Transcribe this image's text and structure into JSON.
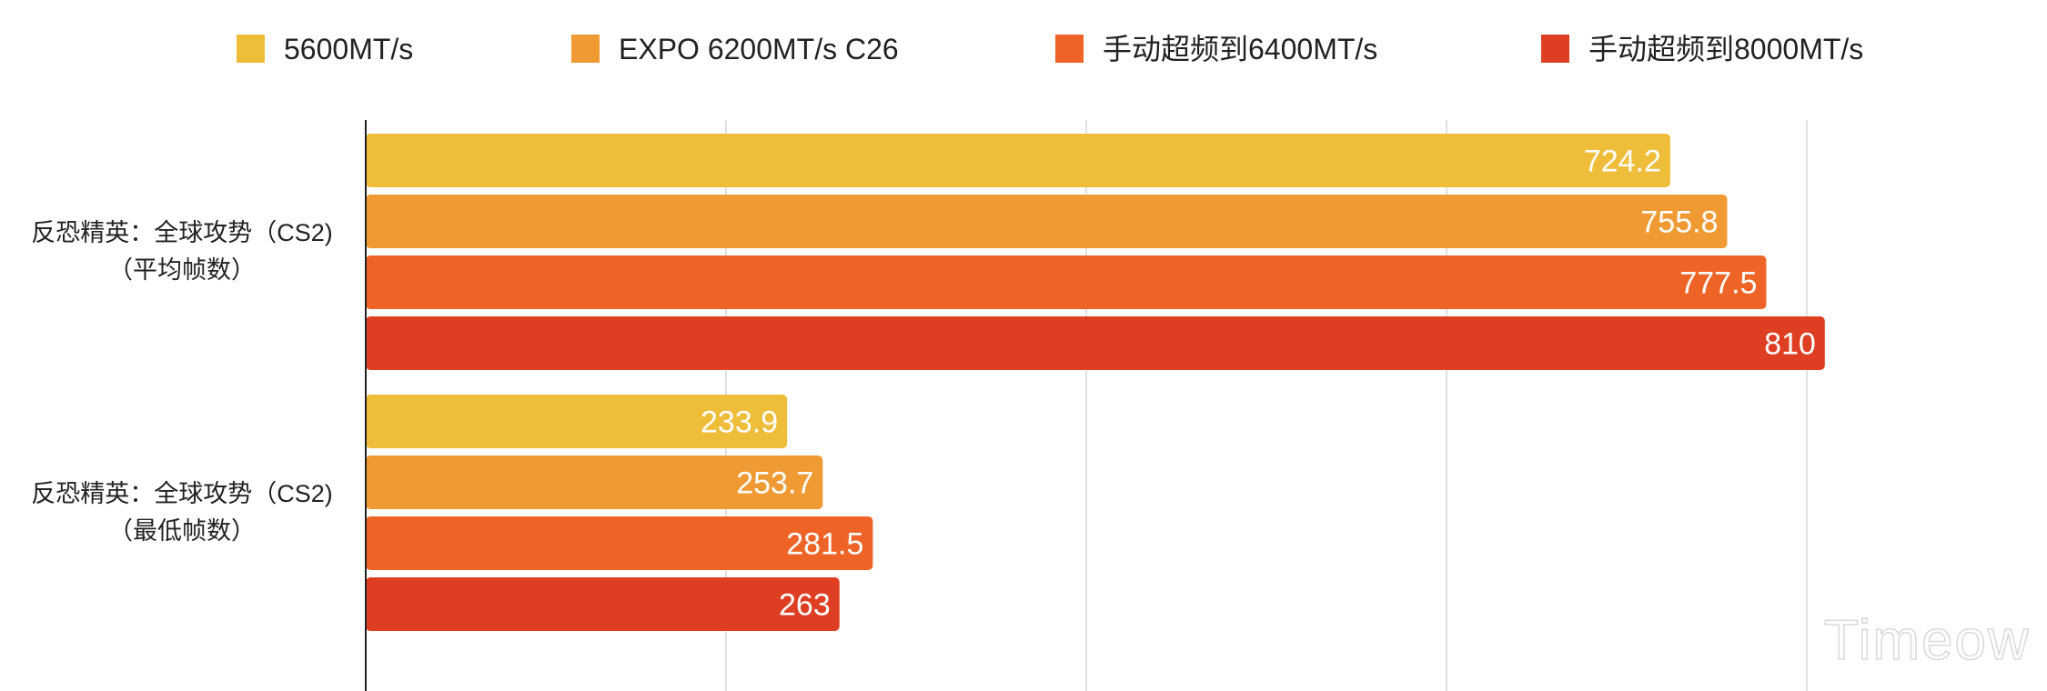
{
  "chart_data": {
    "type": "bar",
    "orientation": "horizontal",
    "categories": [
      [
        "反恐精英：全球攻势（CS2)",
        "（平均帧数）"
      ],
      [
        "反恐精英：全球攻势（CS2)",
        "（最低帧数）"
      ]
    ],
    "series": [
      {
        "name": "5600MT/s",
        "color": "#EEBD39",
        "values": [
          724.2,
          233.9
        ]
      },
      {
        "name": "EXPO 6200MT/s C26",
        "color": "#F09A34",
        "values": [
          755.8,
          253.7
        ]
      },
      {
        "name": "手动超频到6400MT/s",
        "color": "#EE6427",
        "values": [
          777.5,
          281.5
        ]
      },
      {
        "name": "手动超频到8000MT/s",
        "color": "#DE3F22",
        "values": [
          810,
          263
        ]
      }
    ],
    "xlim": [
      0,
      900
    ],
    "grid": true,
    "legend": "top",
    "title": "",
    "xlabel": "",
    "ylabel": ""
  },
  "watermark": "Timeow"
}
